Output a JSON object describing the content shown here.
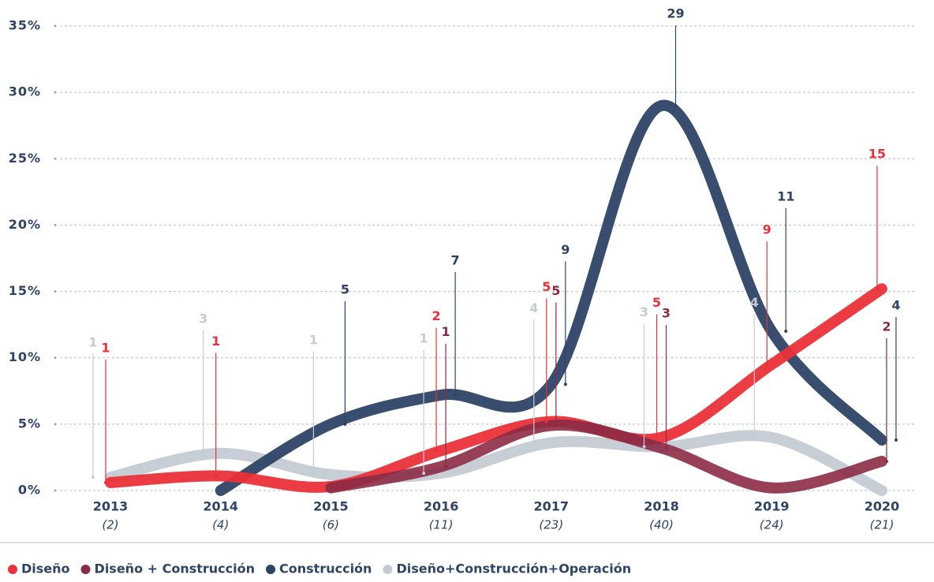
{
  "chart_data": {
    "type": "line",
    "categories": [
      "2013",
      "2014",
      "2015",
      "2016",
      "2017",
      "2018",
      "2019",
      "2020"
    ],
    "category_notes": [
      "(2)",
      "(4)",
      "(6)",
      "(11)",
      "(23)",
      "(40)",
      "(24)",
      "(21)"
    ],
    "ylim": [
      0,
      35
    ],
    "yticks": [
      {
        "value": 0,
        "label": "0%"
      },
      {
        "value": 5,
        "label": "5%"
      },
      {
        "value": 10,
        "label": "10%"
      },
      {
        "value": 15,
        "label": "15%"
      },
      {
        "value": 20,
        "label": "20%"
      },
      {
        "value": 25,
        "label": "25%"
      },
      {
        "value": 30,
        "label": "30%"
      },
      {
        "value": 35,
        "label": "35%"
      }
    ],
    "grid": true,
    "legend": "bottom",
    "series": [
      {
        "name": "Diseño+Construcción+Operación",
        "color": "#c5cbd4",
        "values": [
          1.0,
          2.8,
          1.2,
          1.3,
          3.6,
          3.3,
          4.0,
          0
        ],
        "counts": [
          1,
          3,
          1,
          1,
          4,
          3,
          4,
          null
        ]
      },
      {
        "name": "Construcción",
        "color": "#2e4466",
        "values": [
          null,
          0,
          5.0,
          7.2,
          8.0,
          29.0,
          12.0,
          3.8
        ],
        "counts": [
          null,
          null,
          5,
          7,
          9,
          29,
          11,
          4
        ]
      },
      {
        "name": "Diseño",
        "color": "#ea3039",
        "values": [
          0.6,
          1.1,
          0.3,
          3.0,
          5.2,
          4.0,
          9.5,
          15.2
        ],
        "counts": [
          1,
          1,
          null,
          2,
          5,
          5,
          9,
          15
        ]
      },
      {
        "name": "Diseño + Construcción",
        "color": "#8c2b46",
        "values": [
          null,
          null,
          0.2,
          1.8,
          4.9,
          3.2,
          0.2,
          2.2
        ],
        "counts": [
          null,
          null,
          null,
          1,
          5,
          3,
          null,
          2
        ]
      }
    ]
  }
}
